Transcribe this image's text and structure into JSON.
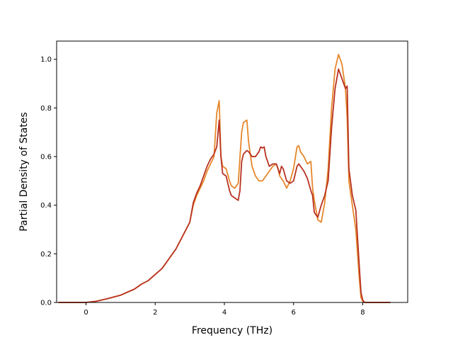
{
  "chart_data": {
    "type": "line",
    "title": "",
    "xlabel": "Frequency (THz)",
    "ylabel": "Partial Density of States",
    "xlim": [
      -0.85,
      9.3
    ],
    "ylim": [
      0.0,
      1.075
    ],
    "xticks": [
      0,
      2,
      4,
      6,
      8
    ],
    "yticks": [
      0.0,
      0.2,
      0.4,
      0.6,
      0.8,
      1.0
    ],
    "xtick_labels": [
      "0",
      "2",
      "4",
      "6",
      "8"
    ],
    "ytick_labels": [
      "0.0",
      "0.2",
      "0.4",
      "0.6",
      "0.8",
      "1.0"
    ],
    "grid": false,
    "legend": false,
    "series": [
      {
        "color": "#e6862a",
        "x": [
          -0.8,
          -0.2,
          0.0,
          0.3,
          0.6,
          1.0,
          1.4,
          1.6,
          1.8,
          2.2,
          2.6,
          3.0,
          3.1,
          3.2,
          3.3,
          3.4,
          3.5,
          3.6,
          3.7,
          3.78,
          3.85,
          3.9,
          3.95,
          4.05,
          4.15,
          4.2,
          4.3,
          4.4,
          4.5,
          4.55,
          4.65,
          4.7,
          4.8,
          4.9,
          5.0,
          5.1,
          5.2,
          5.3,
          5.4,
          5.5,
          5.55,
          5.6,
          5.7,
          5.8,
          5.9,
          6.0,
          6.1,
          6.15,
          6.2,
          6.3,
          6.4,
          6.5,
          6.55,
          6.6,
          6.7,
          6.8,
          6.9,
          7.0,
          7.1,
          7.2,
          7.3,
          7.35,
          7.4,
          7.5,
          7.55,
          7.6,
          7.7,
          7.8,
          7.9,
          7.95,
          8.0,
          8.05,
          8.3,
          8.8
        ],
        "y": [
          0.0,
          0.0,
          0.0,
          0.005,
          0.015,
          0.03,
          0.055,
          0.075,
          0.09,
          0.14,
          0.22,
          0.33,
          0.4,
          0.44,
          0.47,
          0.5,
          0.54,
          0.57,
          0.6,
          0.78,
          0.83,
          0.6,
          0.56,
          0.55,
          0.5,
          0.48,
          0.47,
          0.49,
          0.7,
          0.74,
          0.75,
          0.66,
          0.56,
          0.52,
          0.5,
          0.5,
          0.52,
          0.54,
          0.56,
          0.57,
          0.55,
          0.52,
          0.5,
          0.47,
          0.5,
          0.55,
          0.64,
          0.645,
          0.62,
          0.6,
          0.57,
          0.58,
          0.47,
          0.42,
          0.34,
          0.33,
          0.41,
          0.55,
          0.8,
          0.96,
          1.02,
          1.0,
          0.98,
          0.88,
          0.76,
          0.5,
          0.4,
          0.3,
          0.1,
          0.02,
          0.005,
          0.0,
          0.0,
          0.0
        ]
      },
      {
        "color": "#b83220",
        "x": [
          -0.8,
          -0.2,
          0.0,
          0.3,
          0.6,
          1.0,
          1.4,
          1.6,
          1.8,
          2.2,
          2.6,
          3.0,
          3.1,
          3.2,
          3.3,
          3.4,
          3.5,
          3.6,
          3.7,
          3.78,
          3.85,
          3.9,
          3.95,
          4.05,
          4.15,
          4.2,
          4.3,
          4.4,
          4.45,
          4.5,
          4.55,
          4.65,
          4.7,
          4.8,
          4.9,
          5.0,
          5.05,
          5.1,
          5.15,
          5.2,
          5.3,
          5.4,
          5.5,
          5.55,
          5.6,
          5.65,
          5.7,
          5.8,
          5.9,
          6.0,
          6.1,
          6.15,
          6.2,
          6.3,
          6.4,
          6.5,
          6.55,
          6.6,
          6.7,
          6.8,
          6.9,
          7.0,
          7.1,
          7.2,
          7.3,
          7.35,
          7.4,
          7.5,
          7.55,
          7.6,
          7.7,
          7.8,
          7.9,
          7.95,
          8.0,
          8.05,
          8.3,
          8.8
        ],
        "y": [
          0.0,
          0.0,
          0.0,
          0.005,
          0.015,
          0.03,
          0.055,
          0.075,
          0.09,
          0.14,
          0.22,
          0.33,
          0.41,
          0.45,
          0.48,
          0.52,
          0.56,
          0.59,
          0.61,
          0.64,
          0.75,
          0.6,
          0.53,
          0.52,
          0.46,
          0.44,
          0.43,
          0.42,
          0.46,
          0.58,
          0.61,
          0.625,
          0.62,
          0.6,
          0.6,
          0.62,
          0.64,
          0.635,
          0.64,
          0.6,
          0.56,
          0.57,
          0.57,
          0.55,
          0.53,
          0.56,
          0.55,
          0.5,
          0.49,
          0.5,
          0.56,
          0.57,
          0.56,
          0.54,
          0.51,
          0.46,
          0.44,
          0.37,
          0.35,
          0.4,
          0.44,
          0.5,
          0.72,
          0.88,
          0.96,
          0.94,
          0.92,
          0.88,
          0.89,
          0.55,
          0.44,
          0.38,
          0.15,
          0.04,
          0.01,
          0.0,
          0.0,
          0.0
        ]
      }
    ]
  }
}
